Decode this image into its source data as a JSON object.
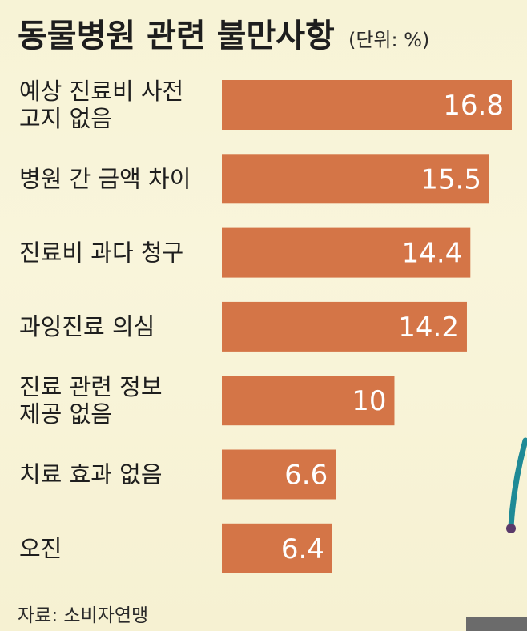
{
  "chart_data": {
    "type": "bar",
    "orientation": "horizontal",
    "title": "동물병원 관련 불만사항",
    "unit": "(단위: %)",
    "categories": [
      [
        "예상 진료비 사전",
        "고지 없음"
      ],
      [
        "병원 간 금액 차이"
      ],
      [
        "진료비 과다 청구"
      ],
      [
        "과잉진료 의심"
      ],
      [
        "진료 관련 정보",
        "제공 없음"
      ],
      [
        "치료 효과 없음"
      ],
      [
        "오진"
      ]
    ],
    "values": [
      16.8,
      15.5,
      14.4,
      14.2,
      10,
      6.6,
      6.4
    ],
    "value_labels": [
      "16.8",
      "15.5",
      "14.4",
      "14.2",
      "10",
      "6.6",
      "6.4"
    ],
    "xlim": [
      0,
      16.8
    ],
    "grid": false,
    "legend": "none",
    "bar_color": "#d47547",
    "source": "자료: 소비자연맹"
  },
  "colors": {
    "bar": "#d47547",
    "accent_stroke": "#1f8a96",
    "accent_dot": "#5a3a6a",
    "corner_block": "#6b6b6b"
  }
}
